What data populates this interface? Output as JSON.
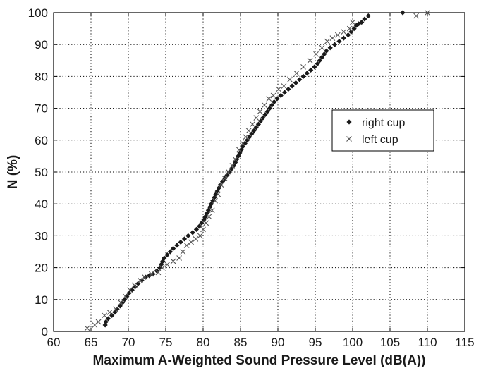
{
  "chart_data": {
    "type": "scatter",
    "title": "",
    "xlabel": "Maximum A-Weighted Sound Pressure Level (dB(A))",
    "ylabel": "N (%)",
    "xlim": [
      60,
      115
    ],
    "ylim": [
      0,
      100
    ],
    "xticks": [
      60,
      65,
      70,
      75,
      80,
      85,
      90,
      95,
      100,
      105,
      110,
      115
    ],
    "yticks": [
      0,
      10,
      20,
      30,
      40,
      50,
      60,
      70,
      80,
      90,
      100
    ],
    "grid": true,
    "legend_position": "right",
    "series": [
      {
        "name": "right cup",
        "marker": "diamond",
        "color": "#1a1a1a",
        "x": [
          66.9,
          67.0,
          67.3,
          67.8,
          68.2,
          68.5,
          68.9,
          69.2,
          69.5,
          69.8,
          70.1,
          70.5,
          70.9,
          71.3,
          71.8,
          72.3,
          72.8,
          73.3,
          73.8,
          74.2,
          74.4,
          74.6,
          74.8,
          75.2,
          75.6,
          76.0,
          76.5,
          77.0,
          77.5,
          78.0,
          78.6,
          79.1,
          79.5,
          79.8,
          80.1,
          80.3,
          80.5,
          80.7,
          80.9,
          81.1,
          81.3,
          81.5,
          81.7,
          81.9,
          82.1,
          82.3,
          82.6,
          82.9,
          83.2,
          83.5,
          83.8,
          84.1,
          84.3,
          84.5,
          84.7,
          84.9,
          85.1,
          85.3,
          85.6,
          85.9,
          86.2,
          86.5,
          86.8,
          87.1,
          87.4,
          87.7,
          88.0,
          88.3,
          88.6,
          88.9,
          89.2,
          89.5,
          89.9,
          90.4,
          90.9,
          91.4,
          91.9,
          92.4,
          92.9,
          93.4,
          93.9,
          94.4,
          94.9,
          95.3,
          95.6,
          95.9,
          96.2,
          96.5,
          97.0,
          97.6,
          98.2,
          98.8,
          99.4,
          99.8,
          100.2,
          100.5,
          100.8,
          101.2,
          101.6,
          102.1,
          106.7
        ],
        "y": [
          2.0,
          3.0,
          4.0,
          5.0,
          6.0,
          7.0,
          8.0,
          9.0,
          10.0,
          11.0,
          12.0,
          13.0,
          14.0,
          15.0,
          16.0,
          17.0,
          17.5,
          18.0,
          19.0,
          20.0,
          21.0,
          22.0,
          23.0,
          24.0,
          25.0,
          26.0,
          27.0,
          28.0,
          29.0,
          30.0,
          31.0,
          32.0,
          33.0,
          34.0,
          35.0,
          36.0,
          37.0,
          38.0,
          39.0,
          40.0,
          41.0,
          42.0,
          43.0,
          44.0,
          45.0,
          46.0,
          47.0,
          48.0,
          49.0,
          50.0,
          51.0,
          52.0,
          53.0,
          54.0,
          55.0,
          56.0,
          57.0,
          58.0,
          59.0,
          60.0,
          61.0,
          62.0,
          63.0,
          64.0,
          65.0,
          66.0,
          67.0,
          68.0,
          69.0,
          70.0,
          71.0,
          72.0,
          73.0,
          74.0,
          75.0,
          76.0,
          77.0,
          78.0,
          79.0,
          80.0,
          81.0,
          82.0,
          83.0,
          84.0,
          85.0,
          86.0,
          87.0,
          88.0,
          89.0,
          90.0,
          91.0,
          92.0,
          93.0,
          94.0,
          95.0,
          96.0,
          96.5,
          97.0,
          98.0,
          99.0,
          100.0
        ]
      },
      {
        "name": "left cup",
        "marker": "x",
        "color": "#555555",
        "x": [
          64.5,
          65.5,
          66.0,
          66.8,
          67.5,
          68.3,
          69.0,
          69.6,
          70.2,
          70.8,
          71.6,
          72.2,
          73.1,
          74.0,
          74.5,
          75.2,
          76.0,
          76.8,
          77.3,
          77.8,
          78.4,
          79.0,
          79.6,
          80.0,
          80.4,
          80.8,
          81.2,
          81.6,
          82.0,
          82.4,
          82.9,
          83.4,
          83.9,
          84.3,
          84.8,
          85.3,
          85.7,
          86.1,
          86.6,
          87.1,
          87.6,
          88.2,
          88.8,
          89.4,
          90.1,
          90.8,
          91.6,
          92.5,
          93.4,
          94.3,
          95.1,
          95.9,
          96.6,
          97.3,
          98.0,
          98.8,
          99.6,
          100.0,
          108.5,
          110.0
        ],
        "y": [
          1.0,
          2.0,
          3.0,
          5.0,
          6.0,
          7.0,
          9.0,
          11.0,
          13.0,
          14.5,
          16.0,
          17.0,
          18.0,
          18.5,
          20.0,
          21.0,
          22.0,
          23.0,
          25.0,
          27.0,
          28.0,
          29.0,
          30.0,
          32.0,
          34.0,
          36.0,
          38.0,
          41.0,
          43.0,
          46.0,
          48.0,
          50.0,
          52.0,
          54.0,
          57.0,
          59.0,
          61.0,
          63.0,
          65.0,
          67.0,
          69.0,
          71.0,
          73.0,
          74.0,
          76.0,
          77.0,
          79.0,
          81.0,
          83.0,
          85.0,
          87.0,
          89.0,
          91.0,
          92.0,
          93.0,
          94.0,
          95.0,
          97.0,
          99.0,
          100.0
        ]
      }
    ]
  }
}
